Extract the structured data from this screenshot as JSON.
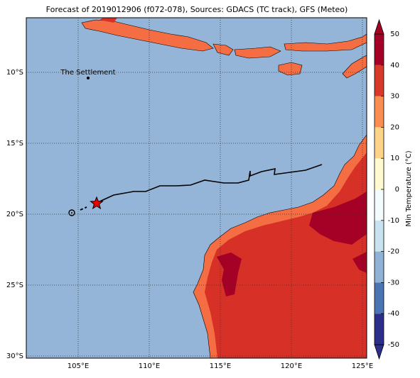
{
  "title": "Forecast of 2019012906 (f072-078), Sources: GDACS (TC track), GFS (Meteo)",
  "map": {
    "lonlim": [
      101.35,
      125.3
    ],
    "latlim": [
      -30.15,
      -6.15
    ],
    "lonticks": [
      {
        "value": 105,
        "label": "105°E"
      },
      {
        "value": 110,
        "label": "110°E"
      },
      {
        "value": 115,
        "label": "115°E"
      },
      {
        "value": 120,
        "label": "120°E"
      },
      {
        "value": 125,
        "label": "125°E"
      }
    ],
    "latticks": [
      {
        "value": -10,
        "label": "10°S"
      },
      {
        "value": -15,
        "label": "15°S"
      },
      {
        "value": -20,
        "label": "20°S"
      },
      {
        "value": -25,
        "label": "25°S"
      },
      {
        "value": -30,
        "label": "30°S"
      }
    ],
    "annotation": "The Settlement"
  },
  "colorbar": {
    "label": "Min Temperature (°C)",
    "lim": [
      -50,
      50
    ],
    "ticks": [
      50,
      40,
      30,
      20,
      10,
      0,
      -10,
      -20,
      -30,
      -40,
      -50
    ],
    "colors": [
      "#2c2f8a",
      "#4a74b4",
      "#8fb2d6",
      "#c6e3ef",
      "#f3fbfd",
      "#fffad0",
      "#fdd38a",
      "#f98e52",
      "#d83a2a",
      "#a50026"
    ]
  }
}
